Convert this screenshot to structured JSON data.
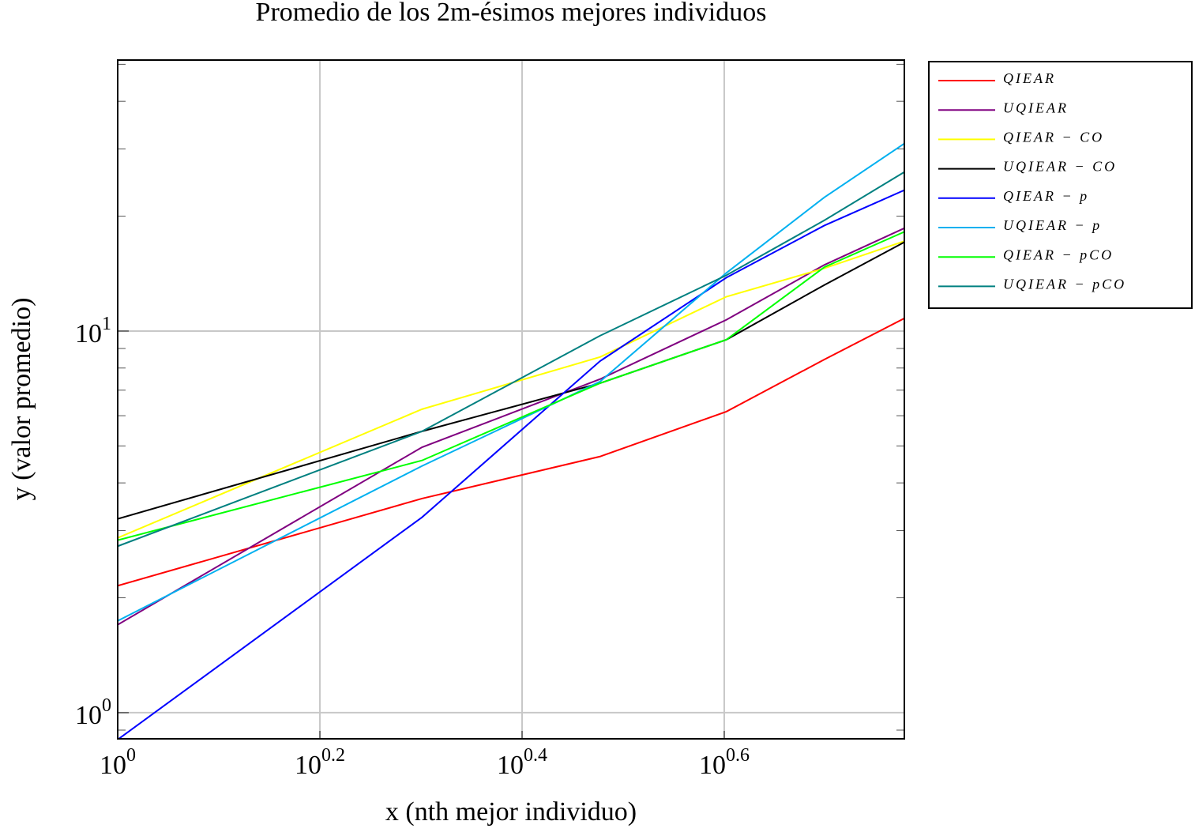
{
  "chart_data": {
    "type": "line",
    "title": "Promedio de los 2m-ésimos mejores individuos",
    "x_label": "x (nth mejor individuo)",
    "y_label": "y (valor promedio)",
    "x": [
      1,
      2,
      3,
      4,
      5,
      6
    ],
    "xlim": [
      1,
      6
    ],
    "ylim": [
      0.854,
      51.3
    ],
    "x_log": true,
    "y_log": true,
    "grid": true,
    "legend": "outside-right",
    "xticks": [
      {
        "value": 1,
        "label": "10",
        "exponent": "0"
      },
      {
        "value": 1.585,
        "label": "10",
        "exponent": "0.2"
      },
      {
        "value": 2.512,
        "label": "10",
        "exponent": "0.4"
      },
      {
        "value": 3.981,
        "label": "10",
        "exponent": "0.6"
      }
    ],
    "yticks": [
      {
        "value": 1,
        "label": "10",
        "exponent": "0"
      },
      {
        "value": 10,
        "label": "10",
        "exponent": "1"
      }
    ],
    "series": [
      {
        "name": "QIEAR",
        "color": "#ff0000",
        "values": [
          2.15,
          3.64,
          4.69,
          6.15,
          8.42,
          10.8
        ]
      },
      {
        "name": "UQIEAR",
        "color": "#800080",
        "values": [
          1.7,
          4.96,
          7.48,
          10.7,
          14.9,
          18.6
        ]
      },
      {
        "name": "QIEAR − CO",
        "color": "#ffff00",
        "values": [
          2.87,
          6.24,
          8.55,
          12.3,
          14.6,
          17.2
        ]
      },
      {
        "name": "UQIEAR − CO",
        "color": "#000000",
        "values": [
          3.22,
          5.46,
          7.3,
          9.49,
          13.2,
          17.1
        ]
      },
      {
        "name": "QIEAR − p",
        "color": "#0000ff",
        "values": [
          0.85,
          3.25,
          8.34,
          13.8,
          18.9,
          23.4
        ]
      },
      {
        "name": "UQIEAR − p",
        "color": "#00b0f0",
        "values": [
          1.74,
          4.43,
          7.37,
          14.2,
          22.4,
          31.0
        ]
      },
      {
        "name": "QIEAR − pCO",
        "color": "#00ff00",
        "values": [
          2.83,
          4.58,
          7.3,
          9.49,
          14.7,
          18.2
        ]
      },
      {
        "name": "UQIEAR − pCO",
        "color": "#008080",
        "values": [
          2.73,
          5.46,
          9.72,
          14.0,
          19.5,
          26.1
        ]
      }
    ]
  }
}
